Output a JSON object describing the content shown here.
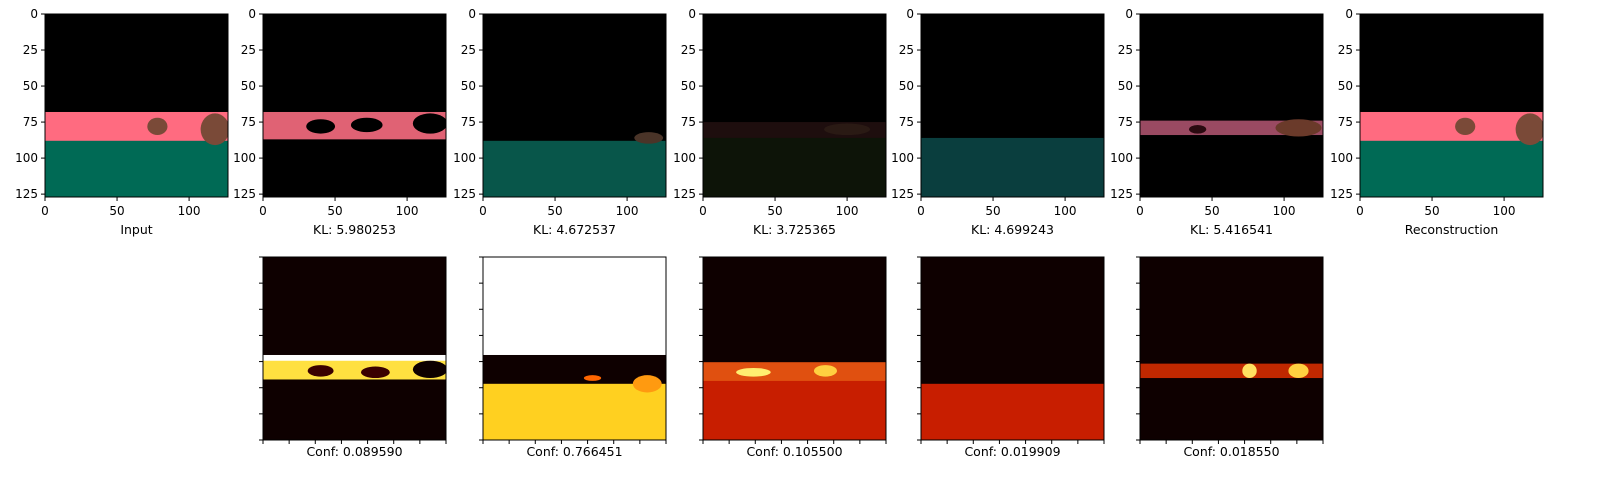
{
  "chart_data": {
    "type": "image-grid",
    "rows": [
      {
        "kind": "rgb-image",
        "axis": {
          "xlim": [
            0,
            127
          ],
          "ylim": [
            127,
            0
          ],
          "x_ticks": [
            0,
            50,
            100
          ],
          "y_ticks": [
            0,
            25,
            50,
            75,
            100,
            125
          ]
        },
        "panels": [
          {
            "label": "Input",
            "bands": [
              {
                "y0": 0,
                "y1": 68,
                "color": "#000000"
              },
              {
                "y0": 68,
                "y1": 88,
                "color": "#ff6b80"
              },
              {
                "y0": 88,
                "y1": 127,
                "color": "#006a55"
              }
            ],
            "blobs": [
              {
                "x": 78,
                "y": 78,
                "rx": 7,
                "ry": 6,
                "color": "#7a4a38"
              },
              {
                "x": 118,
                "y": 80,
                "rx": 10,
                "ry": 11,
                "color": "#7a4a38"
              }
            ]
          },
          {
            "label": "KL: 5.980253",
            "bands": [
              {
                "y0": 0,
                "y1": 68,
                "color": "#000000"
              },
              {
                "y0": 68,
                "y1": 87,
                "color": "#e06274"
              },
              {
                "y0": 87,
                "y1": 127,
                "color": "#000000"
              }
            ],
            "blobs": [
              {
                "x": 40,
                "y": 78,
                "rx": 10,
                "ry": 5,
                "color": "#000000"
              },
              {
                "x": 72,
                "y": 77,
                "rx": 11,
                "ry": 5,
                "color": "#000000"
              },
              {
                "x": 116,
                "y": 76,
                "rx": 12,
                "ry": 7,
                "color": "#000000"
              }
            ]
          },
          {
            "label": "KL: 4.672537",
            "bands": [
              {
                "y0": 0,
                "y1": 88,
                "color": "#000000"
              },
              {
                "y0": 88,
                "y1": 127,
                "color": "#08564a"
              }
            ],
            "blobs": [
              {
                "x": 115,
                "y": 86,
                "rx": 10,
                "ry": 4,
                "color": "#4a3428"
              }
            ]
          },
          {
            "label": "KL: 3.725365",
            "bands": [
              {
                "y0": 0,
                "y1": 75,
                "color": "#000000"
              },
              {
                "y0": 75,
                "y1": 86,
                "color": "#1e0e0e"
              },
              {
                "y0": 86,
                "y1": 127,
                "color": "#0d1408"
              }
            ],
            "blobs": [
              {
                "x": 100,
                "y": 80,
                "rx": 16,
                "ry": 4,
                "color": "#2a1a14"
              }
            ]
          },
          {
            "label": "KL: 4.699243",
            "bands": [
              {
                "y0": 0,
                "y1": 86,
                "color": "#000000"
              },
              {
                "y0": 86,
                "y1": 127,
                "color": "#0a3e3e"
              }
            ],
            "blobs": []
          },
          {
            "label": "KL: 5.416541",
            "bands": [
              {
                "y0": 0,
                "y1": 74,
                "color": "#000000"
              },
              {
                "y0": 74,
                "y1": 84,
                "color": "#9a4a62"
              },
              {
                "y0": 84,
                "y1": 127,
                "color": "#000000"
              }
            ],
            "blobs": [
              {
                "x": 110,
                "y": 79,
                "rx": 16,
                "ry": 6,
                "color": "#6a3a2a"
              },
              {
                "x": 40,
                "y": 80,
                "rx": 6,
                "ry": 3,
                "color": "#2a0a10"
              }
            ]
          },
          {
            "label": "Reconstruction",
            "bands": [
              {
                "y0": 0,
                "y1": 68,
                "color": "#000000"
              },
              {
                "y0": 68,
                "y1": 88,
                "color": "#ff6b80"
              },
              {
                "y0": 88,
                "y1": 127,
                "color": "#006a55"
              }
            ],
            "blobs": [
              {
                "x": 73,
                "y": 78,
                "rx": 7,
                "ry": 6,
                "color": "#7a4a38"
              },
              {
                "x": 118,
                "y": 80,
                "rx": 10,
                "ry": 11,
                "color": "#7a4a38"
              }
            ]
          }
        ]
      },
      {
        "kind": "heatmap",
        "colormap": "hot",
        "axis": {
          "xlim": [
            0,
            127
          ],
          "ylim": [
            127,
            0
          ],
          "show_tick_labels": false
        },
        "panels": [
          {
            "label": "Conf: 0.089590",
            "bands": [
              {
                "y0": 0,
                "y1": 68,
                "color": "#0e0000"
              },
              {
                "y0": 68,
                "y1": 72,
                "color": "#ffffff"
              },
              {
                "y0": 72,
                "y1": 85,
                "color": "#ffe040"
              },
              {
                "y0": 85,
                "y1": 127,
                "color": "#0e0000"
              }
            ],
            "blobs": [
              {
                "x": 40,
                "y": 79,
                "rx": 9,
                "ry": 4,
                "color": "#3a0000"
              },
              {
                "x": 78,
                "y": 80,
                "rx": 10,
                "ry": 4,
                "color": "#3a0000"
              },
              {
                "x": 116,
                "y": 78,
                "rx": 12,
                "ry": 6,
                "color": "#0e0000"
              }
            ]
          },
          {
            "label": "Conf: 0.766451",
            "bands": [
              {
                "y0": 0,
                "y1": 68,
                "color": "#ffffff"
              },
              {
                "y0": 68,
                "y1": 88,
                "color": "#0e0000"
              },
              {
                "y0": 88,
                "y1": 127,
                "color": "#ffd020"
              }
            ],
            "blobs": [
              {
                "x": 114,
                "y": 88,
                "rx": 10,
                "ry": 6,
                "color": "#ff9a10"
              },
              {
                "x": 76,
                "y": 84,
                "rx": 6,
                "ry": 2,
                "color": "#ff6600"
              }
            ]
          },
          {
            "label": "Conf: 0.105500",
            "bands": [
              {
                "y0": 0,
                "y1": 73,
                "color": "#0e0000"
              },
              {
                "y0": 73,
                "y1": 86,
                "color": "#e05010"
              },
              {
                "y0": 86,
                "y1": 127,
                "color": "#c81e00"
              }
            ],
            "blobs": [
              {
                "x": 35,
                "y": 80,
                "rx": 12,
                "ry": 3,
                "color": "#ffee70"
              },
              {
                "x": 85,
                "y": 79,
                "rx": 8,
                "ry": 4,
                "color": "#ffd040"
              }
            ]
          },
          {
            "label": "Conf: 0.019909",
            "bands": [
              {
                "y0": 0,
                "y1": 88,
                "color": "#0e0000"
              },
              {
                "y0": 88,
                "y1": 127,
                "color": "#c81e00"
              }
            ],
            "blobs": []
          },
          {
            "label": "Conf: 0.018550",
            "bands": [
              {
                "y0": 0,
                "y1": 74,
                "color": "#0e0000"
              },
              {
                "y0": 74,
                "y1": 84,
                "color": "#c02800"
              },
              {
                "y0": 84,
                "y1": 127,
                "color": "#0e0000"
              }
            ],
            "blobs": [
              {
                "x": 76,
                "y": 79,
                "rx": 5,
                "ry": 5,
                "color": "#ffe060"
              },
              {
                "x": 110,
                "y": 79,
                "rx": 7,
                "ry": 5,
                "color": "#ffd040"
              }
            ]
          }
        ]
      }
    ]
  }
}
